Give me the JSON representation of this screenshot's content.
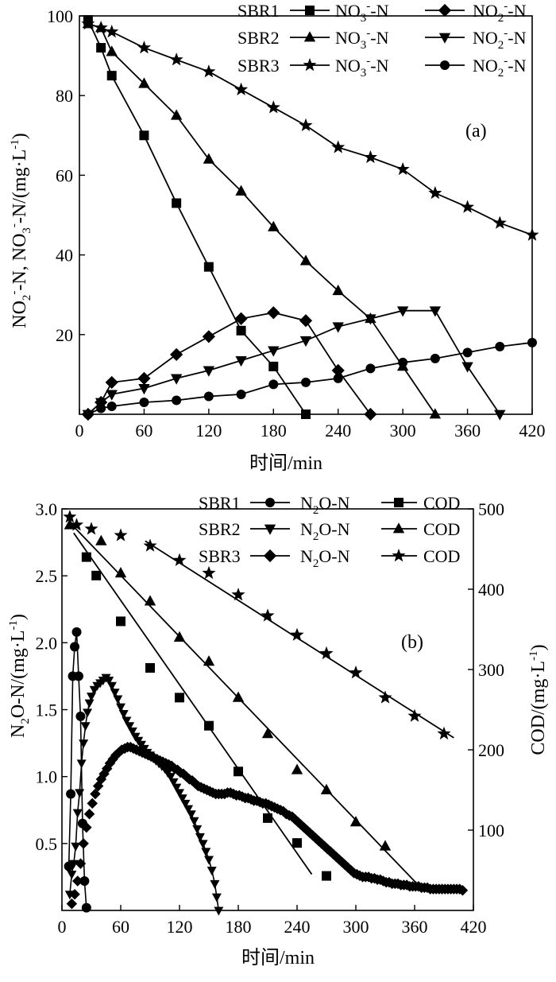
{
  "chart_data": [
    {
      "panel": "(a)",
      "type": "line",
      "xlabel": "时间/min",
      "ylabel_main": "NO",
      "ylabel_sub1": "2",
      "ylabel_sup1": "-",
      "ylabel_mid": "-N, NO",
      "ylabel_sub2": "3",
      "ylabel_sup2": "-",
      "ylabel_end": "-N/(mg·L",
      "ylabel_sup3": "-1",
      "ylabel_close": ")",
      "xlim": [
        0,
        420
      ],
      "ylim": [
        0,
        100
      ],
      "xticks": [
        "0",
        "60",
        "120",
        "180",
        "240",
        "300",
        "360",
        "420"
      ],
      "yticks": [
        "20",
        "40",
        "60",
        "80",
        "100"
      ],
      "legend_rows": [
        "SBR1",
        "SBR2",
        "SBR3"
      ],
      "legend_no3": "NO",
      "legend_no3_sub": "3",
      "legend_no3_sup": "-",
      "legend_no3_end": "-N",
      "legend_no2": "NO",
      "legend_no2_sub": "2",
      "legend_no2_sup": "-",
      "legend_no2_end": "-N",
      "series": [
        {
          "name": "SBR1 NO3--N",
          "marker": "square",
          "x": [
            8,
            20,
            30,
            60,
            90,
            120,
            150,
            180,
            210
          ],
          "y": [
            99,
            92,
            85,
            70,
            53,
            37,
            21,
            12,
            0
          ]
        },
        {
          "name": "SBR1 NO2--N",
          "marker": "diamond",
          "x": [
            8,
            20,
            30,
            60,
            90,
            120,
            150,
            180,
            210,
            240,
            270
          ],
          "y": [
            0,
            3,
            8,
            9,
            15,
            19.5,
            24,
            25.5,
            23.5,
            11,
            0
          ]
        },
        {
          "name": "SBR2 NO3--N",
          "marker": "triangle",
          "x": [
            8,
            20,
            30,
            60,
            90,
            120,
            150,
            180,
            210,
            240,
            270,
            300,
            330
          ],
          "y": [
            98,
            97,
            91,
            83,
            75,
            64,
            56,
            47,
            38.5,
            31,
            24,
            12,
            0
          ]
        },
        {
          "name": "SBR2 NO2--N",
          "marker": "triangle-down",
          "x": [
            8,
            20,
            30,
            60,
            90,
            120,
            150,
            180,
            210,
            240,
            270,
            300,
            330,
            360,
            390
          ],
          "y": [
            0,
            3,
            5,
            6.5,
            9,
            11,
            13.5,
            16,
            18.5,
            22,
            24,
            26,
            26,
            12,
            0
          ]
        },
        {
          "name": "SBR3 NO3--N",
          "marker": "star",
          "x": [
            8,
            20,
            30,
            60,
            90,
            120,
            150,
            180,
            210,
            240,
            270,
            300,
            330,
            360,
            390,
            420
          ],
          "y": [
            98,
            97,
            96,
            92,
            89,
            86,
            81.5,
            77,
            72.5,
            67,
            64.5,
            61.5,
            55.5,
            52,
            48,
            45
          ]
        },
        {
          "name": "SBR3 NO2--N",
          "marker": "circle",
          "x": [
            8,
            20,
            30,
            60,
            90,
            120,
            150,
            180,
            210,
            240,
            270,
            300,
            330,
            360,
            390,
            420
          ],
          "y": [
            0,
            1.5,
            2,
            3,
            3.5,
            4.5,
            5,
            7.5,
            8,
            9,
            11.5,
            13,
            14,
            15.5,
            17,
            18
          ]
        }
      ],
      "annotation": "(a)"
    },
    {
      "panel": "(b)",
      "type": "scatter",
      "xlabel": "时间/min",
      "ylabel_left_main": "N",
      "ylabel_left_sub": "2",
      "ylabel_left_end": "O-N/(mg·L",
      "ylabel_left_sup": "-1",
      "ylabel_left_close": ")",
      "ylabel_right_main": "COD/(mg·L",
      "ylabel_right_sup": "-1",
      "ylabel_right_close": ")",
      "xlim": [
        0,
        420
      ],
      "ylim_left": [
        0,
        3.0
      ],
      "ylim_right": [
        0,
        500
      ],
      "xticks": [
        "0",
        "60",
        "120",
        "180",
        "240",
        "300",
        "360",
        "420"
      ],
      "yticks_left": [
        "0.5",
        "1.0",
        "1.5",
        "2.0",
        "2.5",
        "3.0"
      ],
      "yticks_right": [
        "100",
        "200",
        "300",
        "400",
        "500"
      ],
      "legend_rows": [
        "SBR1",
        "SBR2",
        "SBR3"
      ],
      "legend_n2o": "N",
      "legend_n2o_sub": "2",
      "legend_n2o_end": "O-N",
      "legend_cod": "COD",
      "series": [
        {
          "name": "SBR1 N2O-N",
          "marker": "circle",
          "axis": "left",
          "x": [
            7,
            9,
            11,
            13,
            15,
            17,
            19,
            21,
            23,
            25
          ],
          "y": [
            0.33,
            0.87,
            1.75,
            1.97,
            2.08,
            1.75,
            1.45,
            0.65,
            0.22,
            0.02
          ]
        },
        {
          "name": "SBR1 COD",
          "marker": "square",
          "axis": "right",
          "x": [
            25,
            35,
            60,
            90,
            120,
            150,
            180,
            210,
            240,
            270
          ],
          "y": [
            440,
            417,
            360,
            302,
            265,
            230,
            173,
            115,
            84,
            43
          ]
        },
        {
          "name": "SBR2 N2O-N",
          "marker": "triangle-down",
          "axis": "left",
          "x": [
            8,
            10,
            12,
            14,
            16,
            18,
            20,
            22,
            24,
            26,
            28,
            30,
            33,
            36,
            39,
            42,
            45,
            48,
            51,
            54,
            57,
            60,
            63,
            66,
            69,
            72,
            75,
            78,
            81,
            84,
            87,
            90,
            93,
            96,
            99,
            102,
            105,
            108,
            111,
            114,
            117,
            120,
            123,
            126,
            129,
            132,
            135,
            138,
            141,
            144,
            147,
            150,
            153,
            156,
            158,
            160
          ],
          "y": [
            0.12,
            0.27,
            0.35,
            0.48,
            0.73,
            0.88,
            1.1,
            1.25,
            1.38,
            1.48,
            1.55,
            1.6,
            1.65,
            1.68,
            1.7,
            1.72,
            1.74,
            1.72,
            1.68,
            1.63,
            1.58,
            1.52,
            1.47,
            1.42,
            1.38,
            1.34,
            1.3,
            1.27,
            1.24,
            1.21,
            1.18,
            1.16,
            1.14,
            1.12,
            1.1,
            1.08,
            1.06,
            1.03,
            1.0,
            0.96,
            0.92,
            0.88,
            0.84,
            0.8,
            0.76,
            0.72,
            0.67,
            0.61,
            0.55,
            0.5,
            0.44,
            0.38,
            0.3,
            0.2,
            0.1,
            0.0
          ]
        },
        {
          "name": "SBR2 COD",
          "marker": "triangle",
          "axis": "right",
          "x": [
            8,
            40,
            60,
            90,
            120,
            150,
            180,
            210,
            240,
            270,
            300,
            330
          ],
          "y": [
            480,
            460,
            420,
            385,
            340,
            310,
            265,
            220,
            175,
            150,
            110,
            80
          ]
        },
        {
          "name": "SBR3 N2O-N",
          "marker": "diamond",
          "axis": "left",
          "x": [
            10,
            13,
            16,
            19,
            22,
            25,
            28,
            31,
            34,
            37,
            40,
            43,
            46,
            49,
            52,
            55,
            58,
            61,
            64,
            67,
            70,
            73,
            76,
            79,
            82,
            85,
            88,
            91,
            94,
            97,
            100,
            103,
            106,
            109,
            112,
            115,
            118,
            121,
            124,
            127,
            130,
            133,
            136,
            139,
            142,
            145,
            148,
            151,
            154,
            157,
            160,
            163,
            166,
            169,
            172,
            175,
            178,
            181,
            184,
            187,
            190,
            193,
            196,
            199,
            202,
            205,
            208,
            211,
            214,
            217,
            220,
            223,
            226,
            229,
            232,
            235,
            238,
            241,
            244,
            247,
            250,
            253,
            256,
            259,
            262,
            265,
            268,
            271,
            274,
            277,
            280,
            283,
            286,
            289,
            292,
            295,
            298,
            301,
            304,
            307,
            310,
            313,
            316,
            319,
            322,
            325,
            328,
            331,
            334,
            337,
            340,
            343,
            346,
            349,
            352,
            355,
            358,
            361,
            364,
            367,
            370,
            373,
            376,
            379,
            382,
            385,
            388,
            391,
            394,
            397,
            400,
            403,
            406,
            409
          ],
          "y": [
            0.05,
            0.12,
            0.22,
            0.35,
            0.5,
            0.62,
            0.72,
            0.8,
            0.87,
            0.93,
            0.98,
            1.02,
            1.06,
            1.1,
            1.13,
            1.16,
            1.18,
            1.2,
            1.21,
            1.22,
            1.22,
            1.21,
            1.2,
            1.19,
            1.18,
            1.17,
            1.16,
            1.15,
            1.14,
            1.13,
            1.12,
            1.11,
            1.1,
            1.09,
            1.08,
            1.06,
            1.05,
            1.03,
            1.02,
            1.0,
            0.98,
            0.97,
            0.95,
            0.93,
            0.92,
            0.91,
            0.9,
            0.89,
            0.88,
            0.87,
            0.87,
            0.87,
            0.87,
            0.88,
            0.88,
            0.87,
            0.86,
            0.86,
            0.85,
            0.84,
            0.84,
            0.83,
            0.82,
            0.82,
            0.81,
            0.8,
            0.8,
            0.79,
            0.78,
            0.77,
            0.76,
            0.75,
            0.74,
            0.72,
            0.71,
            0.7,
            0.68,
            0.66,
            0.64,
            0.62,
            0.6,
            0.58,
            0.56,
            0.54,
            0.52,
            0.5,
            0.48,
            0.46,
            0.44,
            0.42,
            0.4,
            0.38,
            0.36,
            0.34,
            0.32,
            0.3,
            0.28,
            0.27,
            0.26,
            0.25,
            0.25,
            0.25,
            0.24,
            0.24,
            0.23,
            0.23,
            0.22,
            0.21,
            0.21,
            0.2,
            0.2,
            0.2,
            0.19,
            0.19,
            0.19,
            0.18,
            0.18,
            0.18,
            0.18,
            0.17,
            0.17,
            0.17,
            0.16,
            0.16,
            0.16,
            0.16,
            0.16,
            0.16,
            0.16,
            0.16,
            0.16,
            0.16,
            0.16,
            0.15
          ]
        },
        {
          "name": "SBR3 COD",
          "marker": "star",
          "axis": "right",
          "x": [
            8,
            15,
            30,
            60,
            90,
            120,
            150,
            180,
            210,
            240,
            270,
            300,
            330,
            360,
            390
          ],
          "y": [
            490,
            480,
            475,
            467,
            454,
            436,
            420,
            393,
            367,
            343,
            320,
            296,
            265,
            242,
            220
          ]
        }
      ],
      "trendlines": [
        {
          "series": "SBR1 COD",
          "x": [
            12,
            255
          ],
          "y": [
            470,
            45
          ]
        },
        {
          "series": "SBR2 COD",
          "x": [
            12,
            365
          ],
          "y": [
            478,
            30
          ]
        },
        {
          "series": "SBR3 COD",
          "x": [
            85,
            400
          ],
          "y": [
            460,
            215
          ]
        }
      ],
      "annotation": "(b)"
    }
  ]
}
